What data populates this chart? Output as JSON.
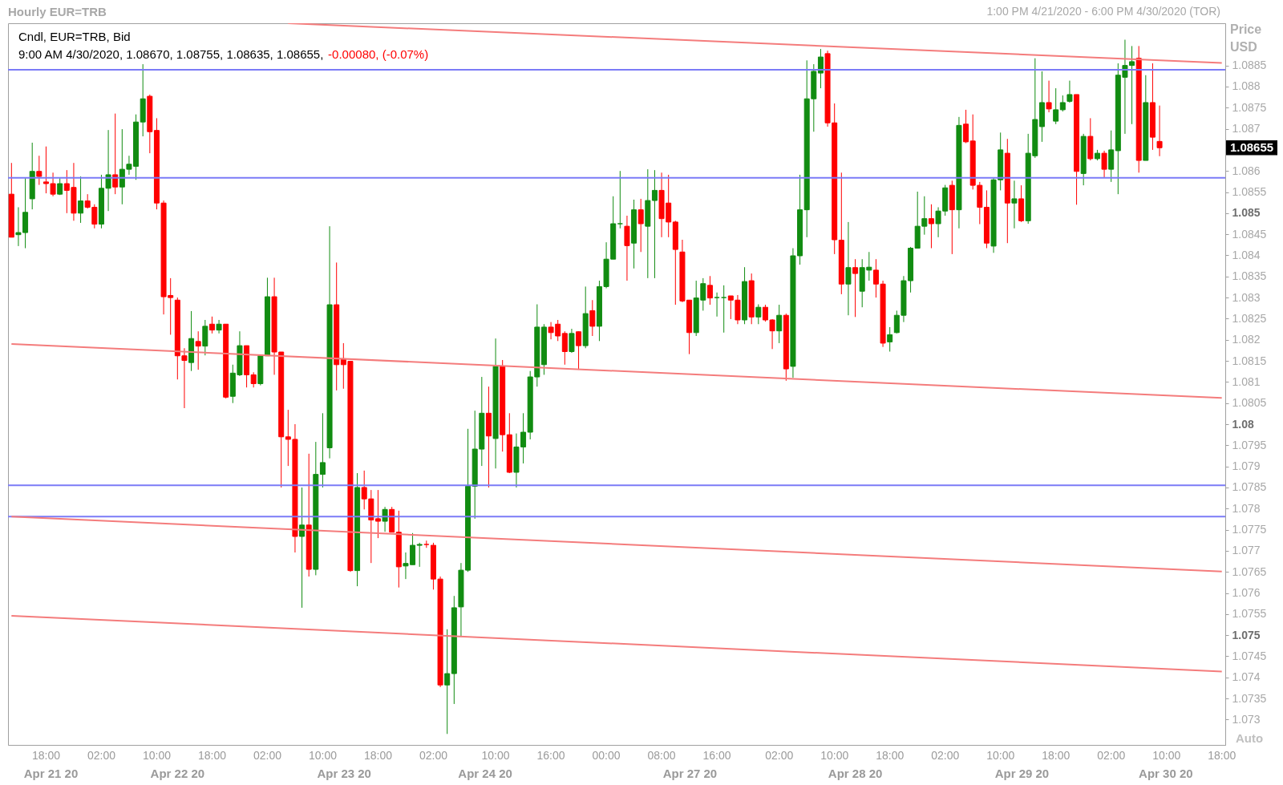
{
  "chart_data": {
    "type": "candlestick",
    "title": "Hourly EUR=TRB",
    "subtitle": "1:00 PM 4/21/2020 - 6:00 PM 4/30/2020 (TOR)",
    "ylabel": "Price USD",
    "annotations": [
      "Cndl, EUR=TRB, Bid",
      "9:00 AM 4/30/2020, 1.08670, 1.08755, 1.08635, 1.08655,",
      "-0.00080, (-0.07%)",
      "Auto",
      "1.08655",
      "Apr 21 20",
      "Apr 22 20",
      "Apr 23 20",
      "Apr 24 20",
      "Apr 27 20",
      "Apr 28 20",
      "Apr 29 20",
      "Apr 30 20"
    ],
    "categories": [
      null,
      null,
      null,
      null,
      null,
      "18:00",
      null,
      null,
      null,
      null,
      null,
      null,
      null,
      "02:00",
      null,
      null,
      null,
      null,
      null,
      null,
      null,
      "10:00",
      null,
      null,
      null,
      null,
      null,
      null,
      null,
      "18:00",
      null,
      null,
      null,
      null,
      null,
      null,
      null,
      "02:00",
      null,
      null,
      null,
      null,
      null,
      null,
      null,
      "10:00",
      null,
      null,
      null,
      null,
      null,
      null,
      null,
      "18:00",
      null,
      null,
      null,
      null,
      null,
      null,
      null,
      "02:00",
      null,
      null,
      null,
      null,
      null,
      null,
      null,
      null,
      "10:00",
      null,
      null,
      null,
      null,
      null,
      null,
      null,
      "16:00",
      null,
      null,
      null,
      null,
      null,
      null,
      null,
      "00:00",
      null,
      null,
      null,
      null,
      null,
      null,
      null,
      "08:00",
      null,
      null,
      null,
      null,
      null,
      null,
      null,
      "16:00",
      null,
      null,
      null,
      null,
      null,
      null,
      null,
      null,
      "02:00",
      null,
      null,
      null,
      null,
      null,
      null,
      null,
      "10:00",
      null,
      null,
      null,
      null,
      null,
      null,
      null,
      "18:00",
      null,
      null,
      null,
      null,
      null,
      null,
      null,
      "02:00",
      null,
      null,
      null,
      null,
      null,
      null,
      null,
      "10:00",
      null,
      null,
      null,
      null,
      null,
      null,
      null,
      "18:00",
      null,
      null,
      null,
      null,
      null,
      null,
      null,
      "02:00",
      null,
      null,
      null,
      null,
      null,
      null,
      null,
      "10:00",
      null,
      null,
      null,
      null,
      null,
      null,
      null,
      "18:00"
    ],
    "ylim": [
      1.0724,
      1.0895
    ],
    "yticks": [
      1.073,
      1.0735,
      1.074,
      1.0745,
      1.075,
      1.0755,
      1.076,
      1.0765,
      1.077,
      1.0775,
      1.078,
      1.0785,
      1.079,
      1.0795,
      1.08,
      1.0805,
      1.081,
      1.0815,
      1.082,
      1.0825,
      1.083,
      1.0835,
      1.084,
      1.0845,
      1.085,
      1.0855,
      1.086,
      {
        "value": 1.0865,
        "label": null
      },
      1.087,
      1.0875,
      1.088,
      1.0885
    ],
    "ref_lines": [
      {
        "axis": "y",
        "value": 1.0884,
        "color": "#7b7bf7"
      },
      {
        "axis": "y",
        "value": 1.08584,
        "color": "#7b7bf7"
      },
      {
        "axis": "y",
        "value": 1.07855,
        "color": "#7b7bf7"
      },
      {
        "axis": "y",
        "value": 1.07781,
        "color": "#7b7bf7"
      }
    ],
    "series": [
      {
        "type": "line",
        "color": "#f47c7c",
        "values": [
          null,
          null,
          null,
          null,
          null,
          null,
          null,
          null,
          null,
          null,
          null,
          null,
          null,
          null,
          null,
          null,
          null,
          null,
          null,
          null,
          null,
          null,
          null,
          null,
          null,
          null,
          null,
          null,
          null,
          null,
          null,
          null,
          null,
          null,
          null,
          null,
          null,
          null,
          null,
          null,
          1.0895,
          null,
          null,
          null,
          null,
          null,
          null,
          null,
          null,
          null,
          null,
          null,
          null,
          null,
          null,
          null,
          null,
          null,
          null,
          null,
          null,
          null,
          null,
          null,
          null,
          null,
          null,
          null,
          null,
          null,
          null,
          null,
          null,
          null,
          null,
          null,
          null,
          null,
          null,
          null,
          null,
          null,
          null,
          null,
          null,
          null,
          null,
          null,
          null,
          null,
          null,
          null,
          null,
          null,
          null,
          null,
          null,
          null,
          null,
          null,
          null,
          null,
          null,
          null,
          null,
          null,
          null,
          null,
          null,
          null,
          null,
          null,
          null,
          null,
          null,
          null,
          null,
          null,
          null,
          null,
          null,
          null,
          null,
          null,
          null,
          null,
          null,
          null,
          null,
          null,
          null,
          null,
          null,
          null,
          null,
          null,
          null,
          null,
          null,
          null,
          null,
          null,
          null,
          null,
          null,
          null,
          null,
          null,
          null,
          null,
          null,
          null,
          null,
          null,
          null,
          null,
          null,
          null,
          null,
          null,
          null,
          null,
          null,
          null,
          null,
          null,
          null,
          null,
          null,
          null,
          null,
          null,
          null,
          null,
          null,
          1.08856
        ]
      },
      {
        "type": "line",
        "color": "#f47c7c",
        "values": [
          1.0819,
          null,
          null,
          null,
          null,
          null,
          null,
          null,
          null,
          null,
          null,
          null,
          null,
          null,
          null,
          null,
          null,
          null,
          null,
          null,
          null,
          null,
          null,
          null,
          null,
          null,
          null,
          null,
          null,
          null,
          null,
          null,
          null,
          null,
          null,
          null,
          null,
          null,
          null,
          null,
          null,
          null,
          null,
          null,
          null,
          null,
          null,
          null,
          null,
          null,
          null,
          null,
          null,
          null,
          null,
          null,
          null,
          null,
          null,
          null,
          null,
          null,
          null,
          null,
          null,
          null,
          null,
          null,
          null,
          null,
          null,
          null,
          null,
          null,
          null,
          null,
          null,
          null,
          null,
          null,
          null,
          null,
          null,
          null,
          null,
          null,
          null,
          null,
          null,
          null,
          null,
          null,
          null,
          null,
          null,
          null,
          null,
          null,
          null,
          null,
          null,
          null,
          null,
          null,
          null,
          null,
          null,
          null,
          null,
          null,
          null,
          null,
          null,
          null,
          null,
          null,
          null,
          null,
          null,
          null,
          null,
          null,
          null,
          null,
          null,
          null,
          null,
          null,
          null,
          null,
          null,
          null,
          null,
          null,
          null,
          null,
          null,
          null,
          null,
          null,
          null,
          null,
          null,
          null,
          null,
          null,
          null,
          null,
          null,
          null,
          null,
          null,
          null,
          null,
          null,
          null,
          null,
          null,
          null,
          null,
          null,
          null,
          null,
          null,
          null,
          null,
          null,
          null,
          null,
          null,
          null,
          null,
          null,
          null,
          null,
          1.08062
        ]
      },
      {
        "type": "line",
        "color": "#f47c7c",
        "values": [
          1.07781,
          null,
          null,
          null,
          null,
          null,
          null,
          null,
          null,
          null,
          null,
          null,
          null,
          null,
          null,
          null,
          null,
          null,
          null,
          null,
          null,
          null,
          null,
          null,
          null,
          null,
          null,
          null,
          null,
          null,
          null,
          null,
          null,
          null,
          null,
          null,
          null,
          null,
          null,
          null,
          null,
          null,
          null,
          null,
          null,
          null,
          null,
          null,
          null,
          null,
          null,
          null,
          null,
          null,
          null,
          null,
          null,
          null,
          null,
          null,
          null,
          null,
          null,
          null,
          null,
          null,
          null,
          null,
          null,
          null,
          null,
          null,
          null,
          null,
          null,
          null,
          null,
          null,
          null,
          null,
          null,
          null,
          null,
          null,
          null,
          null,
          null,
          null,
          null,
          null,
          null,
          null,
          null,
          null,
          null,
          null,
          null,
          null,
          null,
          null,
          null,
          null,
          null,
          null,
          null,
          null,
          null,
          null,
          null,
          null,
          null,
          null,
          null,
          null,
          null,
          null,
          null,
          null,
          null,
          null,
          null,
          null,
          null,
          null,
          null,
          null,
          null,
          null,
          null,
          null,
          null,
          null,
          null,
          null,
          null,
          null,
          null,
          null,
          null,
          null,
          null,
          null,
          null,
          null,
          null,
          null,
          null,
          null,
          null,
          null,
          null,
          null,
          null,
          null,
          null,
          null,
          null,
          null,
          null,
          null,
          null,
          null,
          null,
          null,
          null,
          null,
          null,
          null,
          null,
          null,
          null,
          null,
          null,
          null,
          null,
          1.07651
        ]
      },
      {
        "type": "line",
        "color": "#f47c7c",
        "values": [
          1.07546,
          null,
          null,
          null,
          null,
          null,
          null,
          null,
          null,
          null,
          null,
          null,
          null,
          null,
          null,
          null,
          null,
          null,
          null,
          null,
          null,
          null,
          null,
          null,
          null,
          null,
          null,
          null,
          null,
          null,
          null,
          null,
          null,
          null,
          null,
          null,
          null,
          null,
          null,
          null,
          null,
          null,
          null,
          null,
          null,
          null,
          null,
          null,
          null,
          null,
          null,
          null,
          null,
          null,
          null,
          null,
          null,
          null,
          null,
          null,
          null,
          null,
          null,
          null,
          null,
          null,
          null,
          null,
          null,
          null,
          null,
          null,
          null,
          null,
          null,
          null,
          null,
          null,
          null,
          null,
          null,
          null,
          null,
          null,
          null,
          null,
          null,
          null,
          null,
          null,
          null,
          null,
          null,
          null,
          null,
          null,
          null,
          null,
          null,
          null,
          null,
          null,
          null,
          null,
          null,
          null,
          null,
          null,
          null,
          null,
          null,
          null,
          null,
          null,
          null,
          null,
          null,
          null,
          null,
          null,
          null,
          null,
          null,
          null,
          null,
          null,
          null,
          null,
          null,
          null,
          null,
          null,
          null,
          null,
          null,
          null,
          null,
          null,
          null,
          null,
          null,
          null,
          null,
          null,
          null,
          null,
          null,
          null,
          null,
          null,
          null,
          null,
          null,
          null,
          null,
          null,
          null,
          null,
          null,
          null,
          null,
          null,
          null,
          null,
          null,
          null,
          null,
          null,
          null,
          null,
          null,
          null,
          null,
          null,
          null,
          1.07414
        ]
      }
    ],
    "ohlc": [
      [
        1.08545,
        1.08619,
        1.08443,
        1.08443
      ],
      [
        1.08449,
        1.08514,
        1.08422,
        1.08454
      ],
      [
        1.08454,
        1.08583,
        1.08417,
        1.08502
      ],
      [
        1.08534,
        1.08667,
        1.08509,
        1.08599
      ],
      [
        1.08599,
        1.08636,
        1.08567,
        1.08587
      ],
      [
        1.08574,
        1.08658,
        1.08547,
        1.0857
      ],
      [
        1.0857,
        1.08596,
        1.0854,
        1.08545
      ],
      [
        1.08545,
        1.08583,
        1.08543,
        1.0857
      ],
      [
        1.0857,
        1.08602,
        1.085,
        1.08554
      ],
      [
        1.08561,
        1.08619,
        1.08482,
        1.085
      ],
      [
        1.085,
        1.08587,
        1.08477,
        1.08529
      ],
      [
        1.08529,
        1.08545,
        1.08511,
        1.08514
      ],
      [
        1.08514,
        1.08521,
        1.08464,
        1.08474
      ],
      [
        1.08474,
        1.08591,
        1.08464,
        1.08559
      ],
      [
        1.08559,
        1.08697,
        1.08505,
        1.08591
      ],
      [
        1.08591,
        1.08736,
        1.08545,
        1.08562
      ],
      [
        1.08562,
        1.08699,
        1.08521,
        1.08604
      ],
      [
        1.08604,
        1.08636,
        1.08591,
        1.08616
      ],
      [
        1.08611,
        1.08734,
        1.08579,
        1.08716
      ],
      [
        1.08716,
        1.08853,
        1.08682,
        1.08771
      ],
      [
        1.08777,
        1.08781,
        1.08642,
        1.08693
      ],
      [
        1.08696,
        1.08725,
        1.08509,
        1.08524
      ],
      [
        1.08524,
        1.0853,
        1.0826,
        1.08302
      ],
      [
        1.08305,
        1.08346,
        1.08212,
        1.083
      ],
      [
        1.08294,
        1.083,
        1.08106,
        1.08162
      ],
      [
        1.08162,
        1.0818,
        1.08038,
        1.08151
      ],
      [
        1.08146,
        1.08268,
        1.08126,
        1.08203
      ],
      [
        1.08196,
        1.0822,
        1.08129,
        1.08185
      ],
      [
        1.08185,
        1.08247,
        1.08163,
        1.08232
      ],
      [
        1.08237,
        1.08255,
        1.08215,
        1.08223
      ],
      [
        1.08223,
        1.08247,
        1.08215,
        1.08237
      ],
      [
        1.08237,
        1.08237,
        1.08061,
        1.08064
      ],
      [
        1.08066,
        1.08141,
        1.0805,
        1.08121
      ],
      [
        1.08117,
        1.0822,
        1.08114,
        1.08186
      ],
      [
        1.08186,
        1.08186,
        1.08087,
        1.08117
      ],
      [
        1.08117,
        1.08123,
        1.08087,
        1.08096
      ],
      [
        1.08096,
        1.08163,
        1.08092,
        1.08162
      ],
      [
        1.08162,
        1.08347,
        1.08162,
        1.08302
      ],
      [
        1.08302,
        1.08347,
        1.08117,
        1.08171
      ],
      [
        1.08171,
        1.08171,
        1.0785,
        1.0797
      ],
      [
        1.0797,
        1.08034,
        1.07901,
        1.07964
      ],
      [
        1.07964,
        1.08,
        1.07696,
        1.07734
      ],
      [
        1.07734,
        1.0785,
        1.07565,
        1.07761
      ],
      [
        1.07761,
        1.0793,
        1.07639,
        1.07656
      ],
      [
        1.07656,
        1.07958,
        1.07642,
        1.07881
      ],
      [
        1.07881,
        1.08026,
        1.0785,
        1.07909
      ],
      [
        1.07944,
        1.08469,
        1.07919,
        1.08283
      ],
      [
        1.08283,
        1.08383,
        1.0808,
        1.08141
      ],
      [
        1.08155,
        1.08192,
        1.08084,
        1.08141
      ],
      [
        1.08149,
        1.08149,
        1.0765,
        1.07653
      ],
      [
        1.07653,
        1.07884,
        1.07616,
        1.0785
      ],
      [
        1.0785,
        1.0789,
        1.07798,
        1.07823
      ],
      [
        1.07823,
        1.07844,
        1.07671,
        1.07773
      ],
      [
        1.07776,
        1.07844,
        1.0773,
        1.0777
      ],
      [
        1.0777,
        1.07804,
        1.07745,
        1.07798
      ],
      [
        1.07798,
        1.07804,
        1.07744,
        1.07744
      ],
      [
        1.07744,
        1.07795,
        1.07613,
        1.07662
      ],
      [
        1.07664,
        1.07696,
        1.07633,
        1.0767
      ],
      [
        1.07667,
        1.07742,
        1.07667,
        1.07713
      ],
      [
        1.07713,
        1.07719,
        1.07662,
        1.07715
      ],
      [
        1.07715,
        1.07724,
        1.07707,
        1.07715
      ],
      [
        1.07713,
        1.07719,
        1.07608,
        1.07633
      ],
      [
        1.07633,
        1.07639,
        1.07377,
        1.07382
      ],
      [
        1.07382,
        1.07514,
        1.07266,
        1.07409
      ],
      [
        1.07409,
        1.07593,
        1.07337,
        1.07565
      ],
      [
        1.07567,
        1.07671,
        1.07496,
        1.07654
      ],
      [
        1.07654,
        1.07989,
        1.0765,
        1.07853
      ],
      [
        1.07853,
        1.08032,
        1.07776,
        1.07941
      ],
      [
        1.07941,
        1.08112,
        1.07901,
        1.08026
      ],
      [
        1.08026,
        1.08089,
        1.0785,
        1.07972
      ],
      [
        1.07966,
        1.08203,
        1.07895,
        1.08137
      ],
      [
        1.08137,
        1.08152,
        1.07935,
        1.07975
      ],
      [
        1.07975,
        1.08026,
        1.07884,
        1.07886
      ],
      [
        1.07886,
        1.07978,
        1.0785,
        1.07946
      ],
      [
        1.07946,
        1.08026,
        1.07907,
        1.07981
      ],
      [
        1.07981,
        1.08126,
        1.07964,
        1.08112
      ],
      [
        1.08112,
        1.08284,
        1.08089,
        1.0823
      ],
      [
        1.08141,
        1.08237,
        1.08117,
        1.0823
      ],
      [
        1.0823,
        1.08242,
        1.08201,
        1.08217
      ],
      [
        1.08237,
        1.08247,
        1.08197,
        1.08209
      ],
      [
        1.08215,
        1.0822,
        1.08141,
        1.08172
      ],
      [
        1.08172,
        1.08226,
        1.08169,
        1.08215
      ],
      [
        1.08219,
        1.0822,
        1.08129,
        1.08186
      ],
      [
        1.08186,
        1.08326,
        1.0818,
        1.08262
      ],
      [
        1.08269,
        1.08294,
        1.08209,
        1.08232
      ],
      [
        1.08232,
        1.0834,
        1.08197,
        1.08326
      ],
      [
        1.08326,
        1.08431,
        1.08322,
        1.08391
      ],
      [
        1.08391,
        1.0854,
        1.08391,
        1.08475
      ],
      [
        1.08475,
        1.086,
        1.08464,
        1.08475
      ],
      [
        1.08469,
        1.08494,
        1.0834,
        1.08423
      ],
      [
        1.08429,
        1.08532,
        1.08369,
        1.08508
      ],
      [
        1.08508,
        1.08534,
        1.08408,
        1.08475
      ],
      [
        1.08469,
        1.08604,
        1.08346,
        1.0853
      ],
      [
        1.0853,
        1.08602,
        1.08346,
        1.08554
      ],
      [
        1.08554,
        1.08596,
        1.08443,
        1.08487
      ],
      [
        1.08524,
        1.08591,
        1.08443,
        1.08479
      ],
      [
        1.08479,
        1.08482,
        1.08283,
        1.08414
      ],
      [
        1.08408,
        1.08437,
        1.08289,
        1.08292
      ],
      [
        1.08294,
        1.08294,
        1.08166,
        1.08217
      ],
      [
        1.08217,
        1.0834,
        1.08209,
        1.08299
      ],
      [
        1.08294,
        1.08346,
        1.08269,
        1.08333
      ],
      [
        1.08329,
        1.08351,
        1.08283,
        1.08299
      ],
      [
        1.083,
        1.08312,
        1.08255,
        1.083
      ],
      [
        1.083,
        1.08329,
        1.08217,
        1.083
      ],
      [
        1.08304,
        1.08304,
        1.08249,
        1.08294
      ],
      [
        1.08294,
        1.08306,
        1.08237,
        1.08247
      ],
      [
        1.08247,
        1.08372,
        1.08237,
        1.08338
      ],
      [
        1.0834,
        1.08357,
        1.08237,
        1.08254
      ],
      [
        1.08254,
        1.08284,
        1.08237,
        1.08277
      ],
      [
        1.08277,
        1.08283,
        1.08243,
        1.08247
      ],
      [
        1.08247,
        1.08249,
        1.08178,
        1.08221
      ],
      [
        1.08221,
        1.08283,
        1.08192,
        1.08258
      ],
      [
        1.08258,
        1.08262,
        1.08103,
        1.08131
      ],
      [
        1.08137,
        1.08417,
        1.0811,
        1.08399
      ],
      [
        1.08399,
        1.08591,
        1.08378,
        1.08508
      ],
      [
        1.08508,
        1.08862,
        1.08443,
        1.08771
      ],
      [
        1.08771,
        1.08853,
        1.08693,
        1.08836
      ],
      [
        1.08832,
        1.08889,
        1.08796,
        1.0887
      ],
      [
        1.08878,
        1.08885,
        1.08705,
        1.08714
      ],
      [
        1.08714,
        1.0876,
        1.08403,
        1.08437
      ],
      [
        1.08436,
        1.08596,
        1.08308,
        1.08332
      ],
      [
        1.08332,
        1.08479,
        1.08258,
        1.08371
      ],
      [
        1.08371,
        1.08391,
        1.08254,
        1.08357
      ],
      [
        1.08315,
        1.08391,
        1.08277,
        1.08371
      ],
      [
        1.08365,
        1.08408,
        1.0834,
        1.08372
      ],
      [
        1.08365,
        1.08391,
        1.083,
        1.08332
      ],
      [
        1.08332,
        1.0834,
        1.08183,
        1.08192
      ],
      [
        1.08195,
        1.0823,
        1.08172,
        1.08212
      ],
      [
        1.08217,
        1.08269,
        1.08215,
        1.08258
      ],
      [
        1.08258,
        1.08351,
        1.08242,
        1.0834
      ],
      [
        1.0834,
        1.0842,
        1.08312,
        1.08417
      ],
      [
        1.08417,
        1.08551,
        1.08417,
        1.08469
      ],
      [
        1.08469,
        1.0854,
        1.08449,
        1.08487
      ],
      [
        1.08487,
        1.08521,
        1.08417,
        1.08475
      ],
      [
        1.08475,
        1.08514,
        1.08443,
        1.08505
      ],
      [
        1.08505,
        1.08567,
        1.08494,
        1.0856
      ],
      [
        1.08566,
        1.08577,
        1.08403,
        1.08508
      ],
      [
        1.08508,
        1.08728,
        1.08464,
        1.08708
      ],
      [
        1.08711,
        1.08745,
        1.08666,
        1.08669
      ],
      [
        1.08671,
        1.08734,
        1.08556,
        1.08566
      ],
      [
        1.08566,
        1.08574,
        1.08474,
        1.08514
      ],
      [
        1.08514,
        1.08554,
        1.08417,
        1.08429
      ],
      [
        1.08422,
        1.08585,
        1.08406,
        1.08579
      ],
      [
        1.08579,
        1.08691,
        1.08554,
        1.0865
      ],
      [
        1.08642,
        1.08676,
        1.08429,
        1.08524
      ],
      [
        1.08524,
        1.08577,
        1.08464,
        1.08534
      ],
      [
        1.08534,
        1.08566,
        1.08479,
        1.08482
      ],
      [
        1.08482,
        1.08688,
        1.08475,
        1.08642
      ],
      [
        1.08636,
        1.08867,
        1.08631,
        1.08722
      ],
      [
        1.08705,
        1.08836,
        1.08669,
        1.08762
      ],
      [
        1.08762,
        1.08814,
        1.08739,
        1.08747
      ],
      [
        1.08718,
        1.08796,
        1.08711,
        1.08745
      ],
      [
        1.08745,
        1.08779,
        1.08741,
        1.08762
      ],
      [
        1.08765,
        1.08814,
        1.08762,
        1.08781
      ],
      [
        1.08781,
        1.08781,
        1.0852,
        1.08599
      ],
      [
        1.08594,
        1.08688,
        1.08566,
        1.08682
      ],
      [
        1.08682,
        1.08725,
        1.08625,
        1.08629
      ],
      [
        1.08629,
        1.0865,
        1.08625,
        1.08642
      ],
      [
        1.08642,
        1.08648,
        1.08585,
        1.08604
      ],
      [
        1.08604,
        1.08696,
        1.08574,
        1.0865
      ],
      [
        1.08648,
        1.08855,
        1.08545,
        1.08827
      ],
      [
        1.08822,
        1.08911,
        1.08688,
        1.0885
      ],
      [
        1.0885,
        1.08896,
        1.08711,
        1.08859
      ],
      [
        1.08867,
        1.08896,
        1.08596,
        1.08625
      ],
      [
        1.08625,
        1.08827,
        1.08625,
        1.08762
      ],
      [
        1.08762,
        1.08855,
        1.0865,
        1.0868
      ],
      [
        1.0867,
        1.08755,
        1.08635,
        1.08655
      ],
      null,
      null,
      null,
      null,
      null,
      null,
      null,
      null,
      null
    ],
    "colors": [
      "#ff0000",
      "#118c11",
      "#118c11",
      "#118c11",
      "#ff0000",
      "#ff0000",
      "#ff0000",
      "#118c11",
      "#ff0000",
      "#ff0000",
      "#118c11",
      "#ff0000",
      "#ff0000",
      "#118c11",
      "#118c11",
      "#ff0000",
      "#118c11",
      "#118c11",
      "#118c11",
      "#118c11",
      "#ff0000",
      "#ff0000",
      "#ff0000",
      "#ff0000",
      "#ff0000",
      "#ff0000",
      "#118c11",
      "#ff0000",
      "#118c11",
      "#ff0000",
      "#118c11",
      "#ff0000",
      "#118c11",
      "#118c11",
      "#ff0000",
      "#ff0000",
      "#118c11",
      "#118c11",
      "#ff0000",
      "#ff0000",
      "#ff0000",
      "#ff0000",
      "#118c11",
      "#ff0000",
      "#118c11",
      "#118c11",
      "#118c11",
      "#ff0000",
      "#ff0000",
      "#ff0000",
      "#118c11",
      "#ff0000",
      "#ff0000",
      "#ff0000",
      "#118c11",
      "#ff0000",
      "#ff0000",
      "#118c11",
      "#118c11",
      "#118c11",
      "#ff0000",
      "#ff0000",
      "#ff0000",
      "#118c11",
      "#118c11",
      "#118c11",
      "#118c11",
      "#118c11",
      "#118c11",
      "#ff0000",
      "#118c11",
      "#ff0000",
      "#ff0000",
      "#118c11",
      "#118c11",
      "#118c11",
      "#118c11",
      "#118c11",
      "#ff0000",
      "#ff0000",
      "#ff0000",
      "#118c11",
      "#ff0000",
      "#118c11",
      "#ff0000",
      "#118c11",
      "#118c11",
      "#118c11",
      "#118c11",
      "#ff0000",
      "#118c11",
      "#ff0000",
      "#118c11",
      "#118c11",
      "#ff0000",
      "#ff0000",
      "#ff0000",
      "#ff0000",
      "#ff0000",
      "#118c11",
      "#118c11",
      "#ff0000",
      "#118c11",
      "#118c11",
      "#ff0000",
      "#ff0000",
      "#118c11",
      "#ff0000",
      "#118c11",
      "#ff0000",
      "#ff0000",
      "#118c11",
      "#ff0000",
      "#118c11",
      "#118c11",
      "#118c11",
      "#118c11",
      "#118c11",
      "#ff0000",
      "#ff0000",
      "#ff0000",
      "#118c11",
      "#ff0000",
      "#118c11",
      "#118c11",
      "#ff0000",
      "#ff0000",
      "#118c11",
      "#118c11",
      "#118c11",
      "#118c11",
      "#118c11",
      "#118c11",
      "#ff0000",
      "#118c11",
      "#118c11",
      "#ff0000",
      "#118c11",
      "#ff0000",
      "#ff0000",
      "#ff0000",
      "#ff0000",
      "#118c11",
      "#118c11",
      "#ff0000",
      "#118c11",
      "#ff0000",
      "#118c11",
      "#118c11",
      "#118c11",
      "#ff0000",
      "#118c11",
      "#118c11",
      "#118c11",
      "#ff0000",
      "#118c11",
      "#ff0000",
      "#118c11",
      "#ff0000",
      "#118c11",
      "#118c11",
      "#118c11",
      "#118c11",
      "#ff0000",
      "#118c11",
      "#ff0000",
      "#ff0000",
      null,
      null,
      null,
      null,
      null,
      null,
      null,
      null,
      null
    ]
  }
}
